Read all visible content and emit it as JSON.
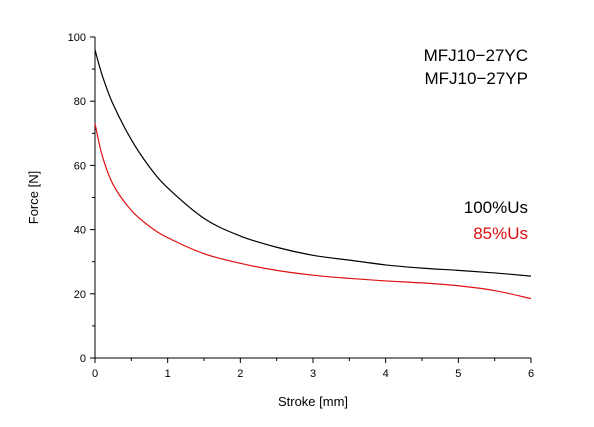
{
  "chart_data": {
    "type": "line",
    "title_lines": [
      "MFJ10−27YC",
      "MFJ10−27YP"
    ],
    "xlabel": "Stroke [mm]",
    "ylabel": "Force [N]",
    "xlim": [
      0,
      6
    ],
    "ylim": [
      0,
      100
    ],
    "x_ticks": [
      "0",
      "1",
      "2",
      "3",
      "4",
      "5",
      "6"
    ],
    "y_ticks": [
      "0",
      "20",
      "40",
      "60",
      "80",
      "100"
    ],
    "grid": false,
    "legend_position": "right",
    "series": [
      {
        "name": "100%Us",
        "color": "#000000",
        "x": [
          0,
          0.1,
          0.25,
          0.5,
          0.75,
          1,
          1.5,
          2,
          2.5,
          3,
          3.5,
          4,
          4.5,
          5,
          5.5,
          6
        ],
        "y": [
          96,
          88,
          79,
          68,
          59.5,
          53,
          43.5,
          38,
          34.5,
          32,
          30.5,
          29,
          28,
          27.3,
          26.5,
          25.5
        ]
      },
      {
        "name": "85%Us",
        "color": "#e01010",
        "x": [
          0,
          0.1,
          0.25,
          0.5,
          0.75,
          1,
          1.5,
          2,
          2.5,
          3,
          3.5,
          4,
          4.5,
          5,
          5.5,
          6
        ],
        "y": [
          73,
          63,
          54,
          46,
          41,
          37.5,
          32.5,
          29.5,
          27.3,
          25.8,
          24.8,
          24,
          23.4,
          22.5,
          21,
          18.5
        ]
      }
    ]
  }
}
